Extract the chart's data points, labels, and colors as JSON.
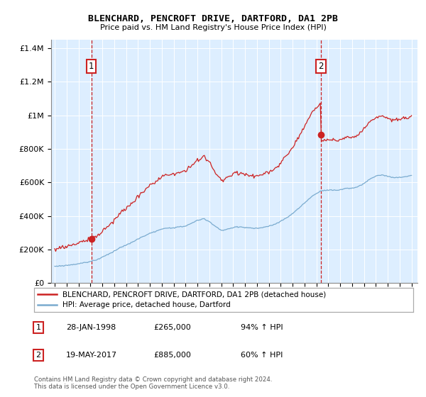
{
  "title": "BLENCHARD, PENCROFT DRIVE, DARTFORD, DA1 2PB",
  "subtitle": "Price paid vs. HM Land Registry's House Price Index (HPI)",
  "legend_entry1": "BLENCHARD, PENCROFT DRIVE, DARTFORD, DA1 2PB (detached house)",
  "legend_entry2": "HPI: Average price, detached house, Dartford",
  "note": "Contains HM Land Registry data © Crown copyright and database right 2024.\nThis data is licensed under the Open Government Licence v3.0.",
  "marker1_label": "1",
  "marker1_date": "28-JAN-1998",
  "marker1_price": "£265,000",
  "marker1_hpi": "94% ↑ HPI",
  "marker1_year": 1998.08,
  "marker1_value": 265000,
  "marker2_label": "2",
  "marker2_date": "19-MAY-2017",
  "marker2_price": "£885,000",
  "marker2_hpi": "60% ↑ HPI",
  "marker2_year": 2017.38,
  "marker2_value": 885000,
  "hpi_color": "#7aabcf",
  "price_color": "#cc2222",
  "background_color": "#ddeeff",
  "ylim": [
    0,
    1450000
  ],
  "yticks": [
    0,
    200000,
    400000,
    600000,
    800000,
    1000000,
    1200000,
    1400000
  ],
  "xlim_start": 1994.7,
  "xlim_end": 2025.5,
  "xticks": [
    1995,
    1996,
    1997,
    1998,
    1999,
    2000,
    2001,
    2002,
    2003,
    2004,
    2005,
    2006,
    2007,
    2008,
    2009,
    2010,
    2011,
    2012,
    2013,
    2014,
    2015,
    2016,
    2017,
    2018,
    2019,
    2020,
    2021,
    2022,
    2023,
    2024,
    2025
  ]
}
